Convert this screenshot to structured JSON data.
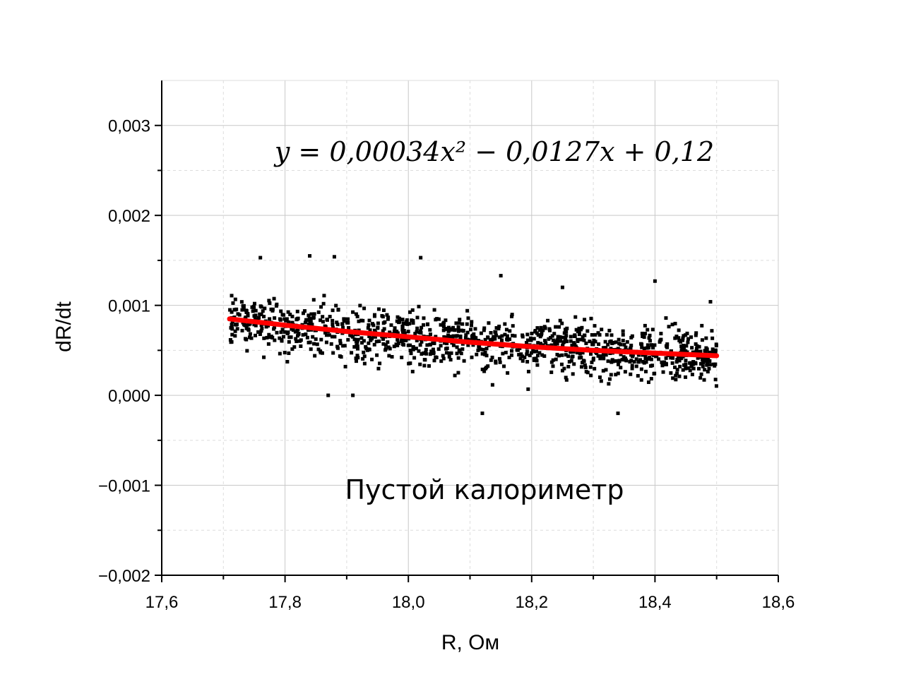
{
  "chart_data": {
    "type": "scatter",
    "xlabel": "R, Ом",
    "ylabel": "dR/dt",
    "xlim": [
      17.6,
      18.6
    ],
    "ylim": [
      -0.002,
      0.0035
    ],
    "x_ticks": [
      17.6,
      17.8,
      18.0,
      18.2,
      18.4,
      18.6
    ],
    "x_tick_labels": [
      "17,6",
      "17,8",
      "18,0",
      "18,2",
      "18,4",
      "18,6"
    ],
    "y_ticks": [
      -0.002,
      -0.001,
      0.0,
      0.001,
      0.002,
      0.003
    ],
    "y_tick_labels": [
      "−0,002",
      "−0,001",
      "0,000",
      "0,001",
      "0,002",
      "0,003"
    ],
    "grid": true,
    "equation": "y = 0,00034x² − 0,0127x + 0,12",
    "annotation": "Пустой калориметр",
    "colors": {
      "points": "#000000",
      "fit": "#ff0000",
      "grid": "#c8c8c8",
      "axes": "#000000"
    },
    "series": [
      {
        "kind": "points",
        "x_range": [
          17.71,
          18.5
        ],
        "count": 1200,
        "y_spread": [
          -0.0003,
          0.00155
        ],
        "sample_points": [
          [
            17.76,
            0.00153
          ],
          [
            17.84,
            0.00155
          ],
          [
            17.88,
            0.00154
          ],
          [
            18.02,
            0.00153
          ],
          [
            17.87,
            0.0
          ],
          [
            17.91,
            0.0
          ],
          [
            18.12,
            -0.0002
          ],
          [
            18.34,
            -0.0002
          ],
          [
            18.4,
            0.00127
          ],
          [
            18.25,
            0.0012
          ],
          [
            18.15,
            0.00133
          ],
          [
            18.49,
            0.00104
          ]
        ]
      },
      {
        "kind": "fit",
        "x": [
          17.71,
          17.8,
          17.9,
          18.0,
          18.1,
          18.2,
          18.3,
          18.4,
          18.5
        ],
        "y": [
          0.00085,
          0.00078,
          0.00071,
          0.00065,
          0.00059,
          0.00054,
          0.0005,
          0.00047,
          0.00044
        ]
      }
    ]
  }
}
